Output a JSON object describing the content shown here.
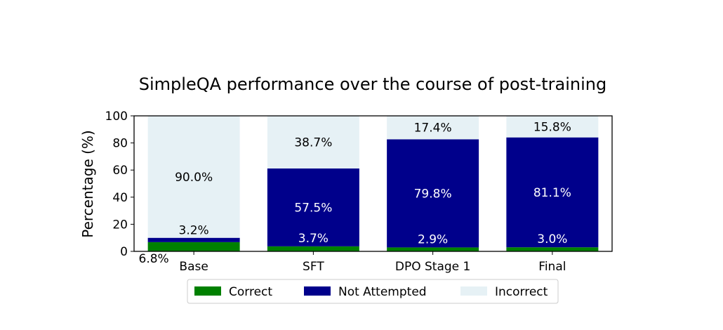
{
  "chart_data": {
    "type": "bar",
    "stacked": true,
    "title": "SimpleQA performance over the course of post-training",
    "xlabel": "",
    "ylabel": "Percentage (%)",
    "ylim": [
      0,
      100
    ],
    "yticks": [
      "0",
      "20",
      "40",
      "60",
      "80",
      "100"
    ],
    "categories": [
      "Base",
      "SFT",
      "DPO Stage 1",
      "Final"
    ],
    "series": [
      {
        "name": "Correct",
        "color": "#008000",
        "values": [
          6.8,
          3.7,
          2.9,
          3.0
        ],
        "labels": [
          "6.8%",
          "3.7%",
          "2.9%",
          "3.0%"
        ]
      },
      {
        "name": "Not Attempted",
        "color": "#00008b",
        "values": [
          3.2,
          57.5,
          79.8,
          81.1
        ],
        "labels": [
          "3.2%",
          "57.5%",
          "79.8%",
          "81.1%"
        ]
      },
      {
        "name": "Incorrect",
        "color": "#e6f1f5",
        "values": [
          90.0,
          38.7,
          17.4,
          15.8
        ],
        "labels": [
          "90.0%",
          "38.7%",
          "17.4%",
          "15.8%"
        ]
      }
    ],
    "legend_position": "bottom-center",
    "grid": false
  }
}
